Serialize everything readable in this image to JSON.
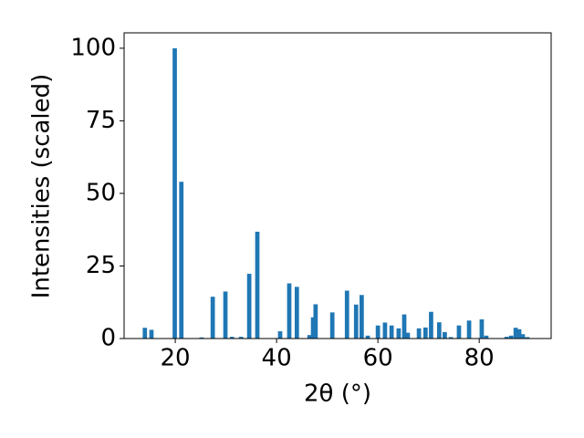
{
  "chart_data": {
    "type": "bar",
    "xlabel": "2θ (°)",
    "ylabel": "Intensities (scaled)",
    "x": [
      14.0,
      15.3,
      19.9,
      21.2,
      25.2,
      27.4,
      29.9,
      31.2,
      33.0,
      34.6,
      36.2,
      40.7,
      42.5,
      44.0,
      46.5,
      47.2,
      47.7,
      51.0,
      53.9,
      55.7,
      56.8,
      58.0,
      60.0,
      61.4,
      62.7,
      64.1,
      65.2,
      65.9,
      68.1,
      69.4,
      70.5,
      72.1,
      73.2,
      74.4,
      76.0,
      78.0,
      80.5,
      81.4,
      85.4,
      86.3,
      87.2,
      87.9,
      88.6,
      89.5
    ],
    "values": [
      3.7,
      3.0,
      100,
      54,
      0.4,
      14.4,
      16.2,
      0.6,
      0.6,
      22.3,
      36.8,
      2.5,
      19,
      17.8,
      1.2,
      7.3,
      11.8,
      9,
      16.5,
      11.7,
      15,
      1,
      4.5,
      5.5,
      4.5,
      3.5,
      8.3,
      2,
      3.5,
      3.8,
      9.2,
      5.6,
      2.2,
      0.5,
      4.5,
      6.2,
      6.6,
      1,
      0.6,
      1,
      3.7,
      3.2,
      1.5,
      0.5
    ],
    "color": "#1f77b4",
    "xlim": [
      9.9,
      94.2
    ],
    "xticks": [
      20,
      40,
      60,
      80
    ],
    "ylim": [
      0,
      105.3
    ],
    "yticks": [
      0,
      25,
      50,
      75,
      100
    ]
  }
}
